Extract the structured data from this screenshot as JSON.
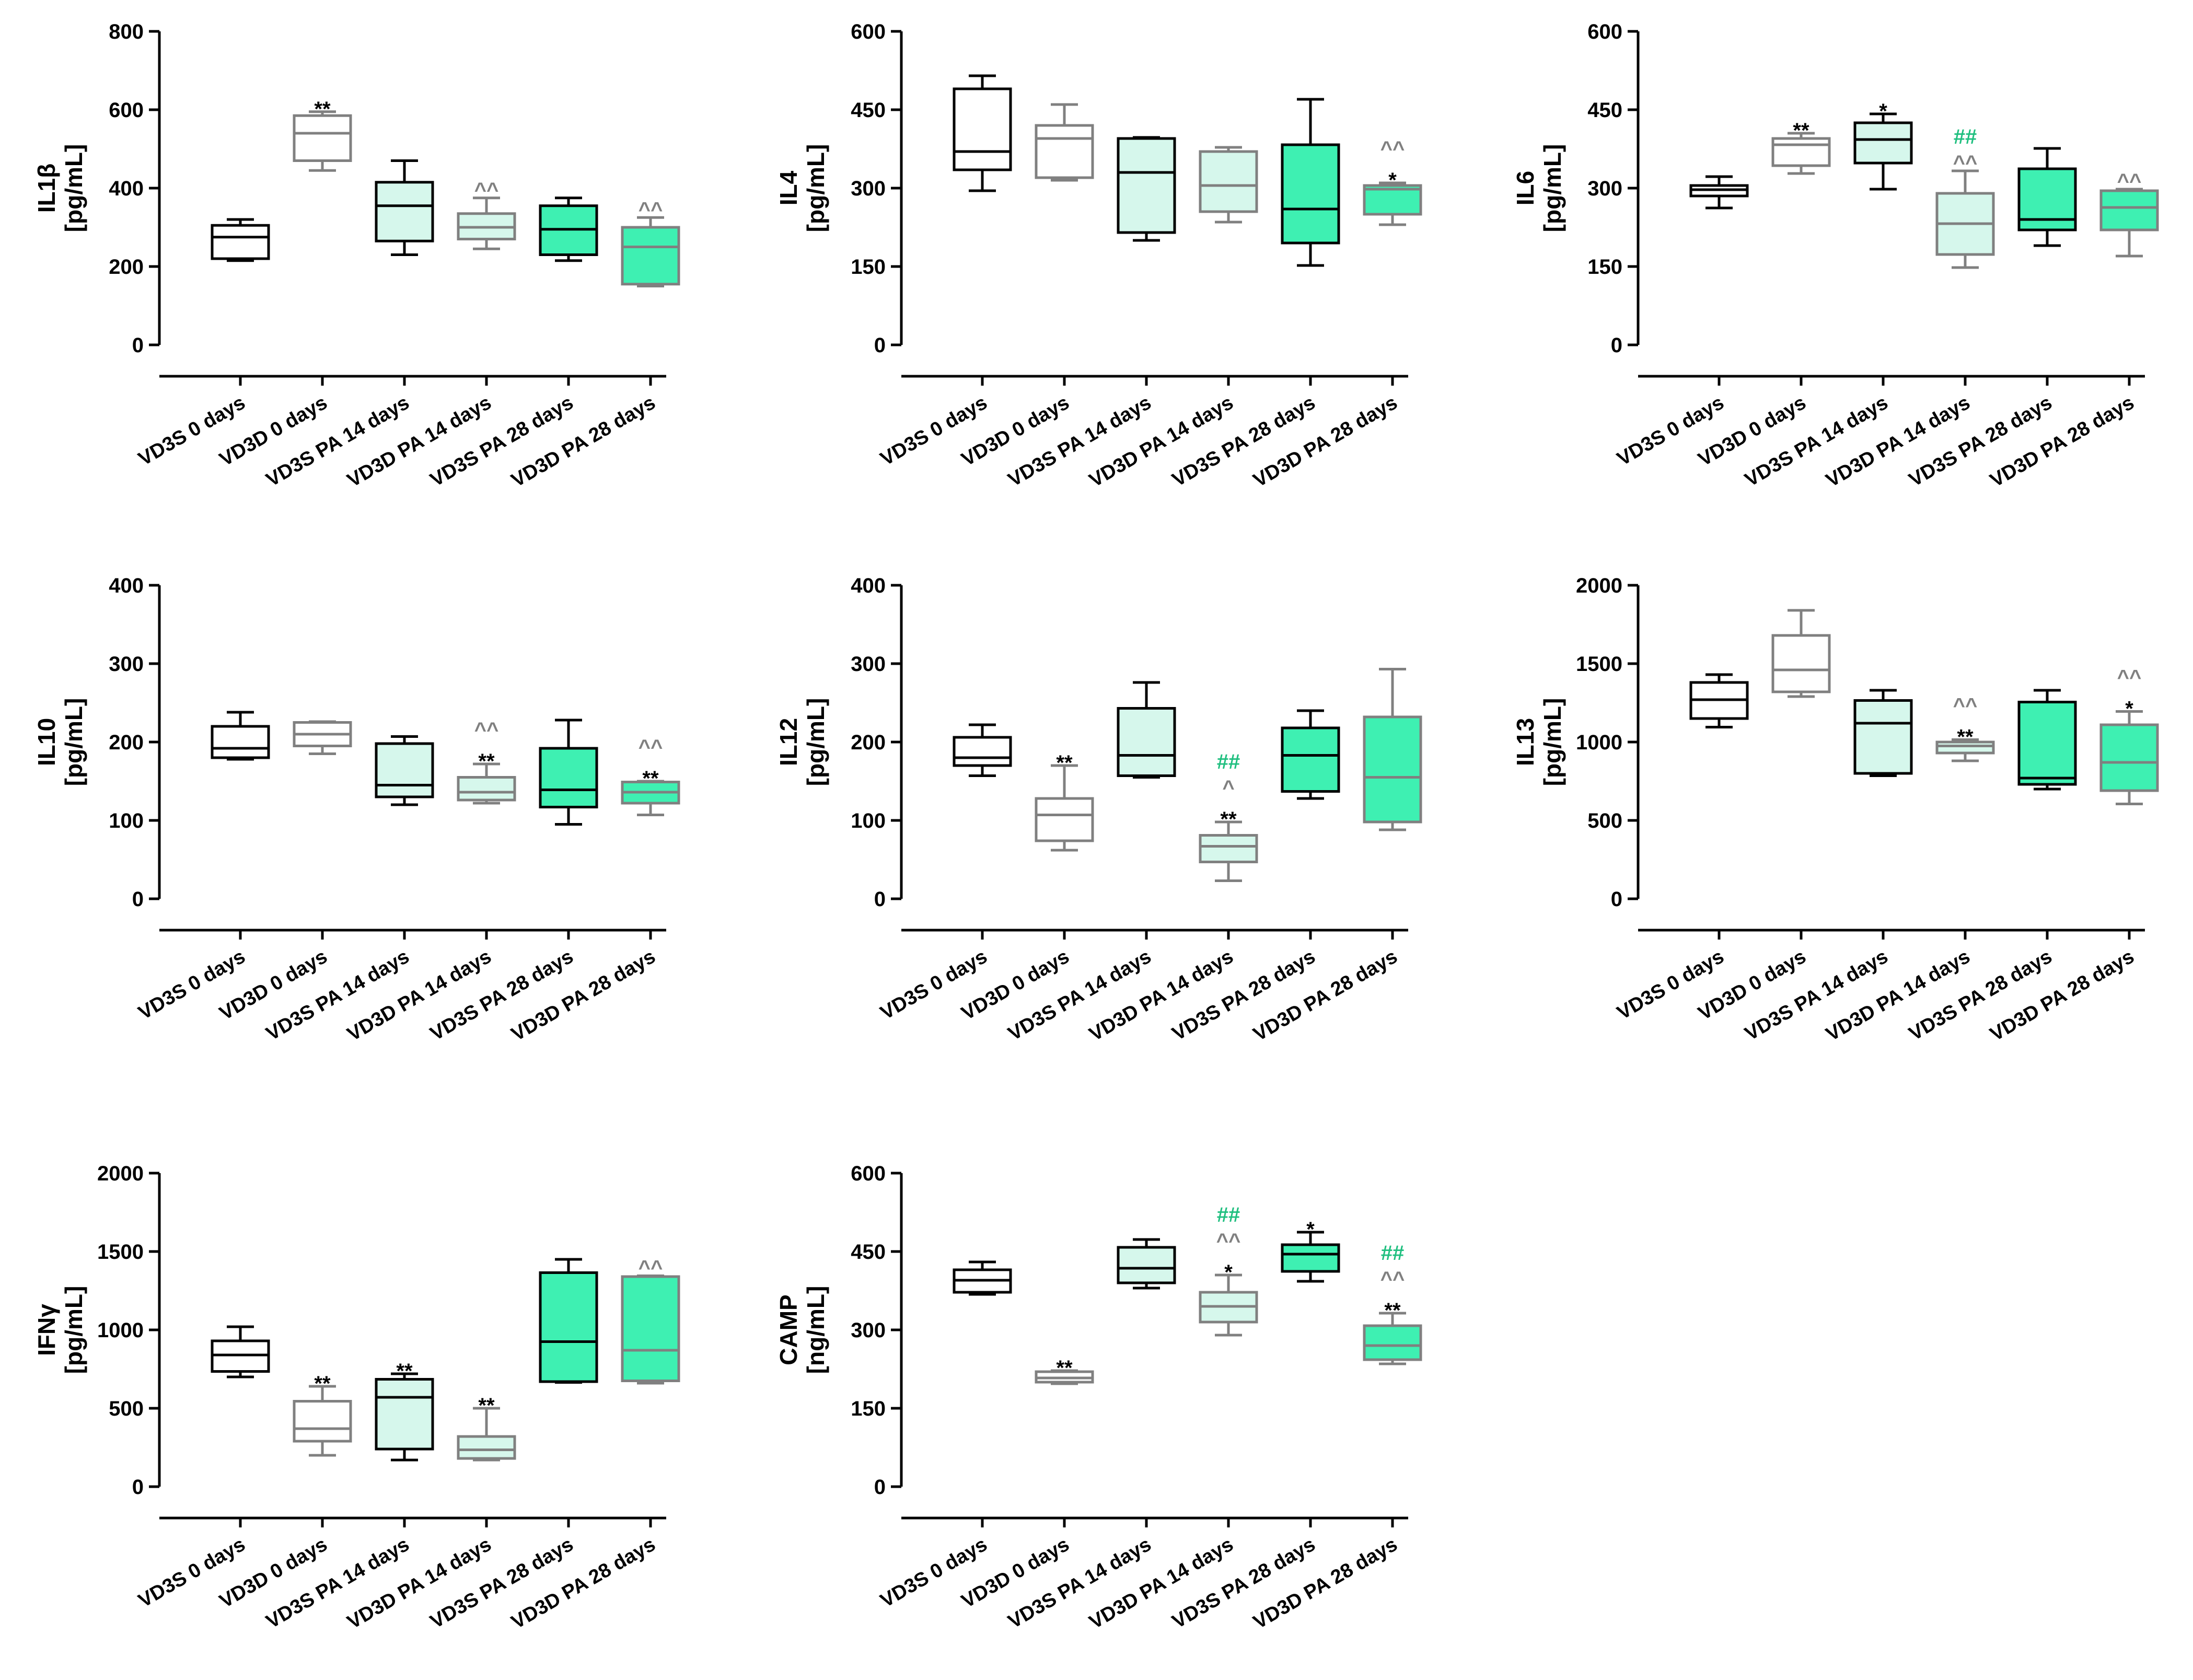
{
  "colors": {
    "axis": "#000000",
    "s0d": "#000000",
    "d0d": "#808080",
    "s14": "#000000",
    "d14": "#808080",
    "s28": "#000000",
    "d28": "#808080",
    "fill_light": "#d6f7ec",
    "fill_bright": "#3ef0b2",
    "anno_star": "#000000",
    "anno_caret": "#808080",
    "anno_hash": "#1fbf7f"
  },
  "chart_data": [
    {
      "type": "box",
      "id": "il1b",
      "ylabel_line1": "IL1β",
      "ylabel_line2": "[pg/mL]",
      "ylim": [
        0,
        800
      ],
      "yticks": [
        "0",
        "200",
        "400",
        "600",
        "800"
      ],
      "categories": [
        "VD3S 0 days",
        "VD3D 0 days",
        "VD3S PA 14 days",
        "VD3D PA 14 days",
        "VD3S PA 28 days",
        "VD3D PA 28 days"
      ],
      "boxes": [
        {
          "min": 215,
          "q1": 220,
          "median": 275,
          "q3": 305,
          "max": 320
        },
        {
          "min": 445,
          "q1": 470,
          "median": 540,
          "q3": 585,
          "max": 595
        },
        {
          "min": 230,
          "q1": 265,
          "median": 355,
          "q3": 415,
          "max": 470
        },
        {
          "min": 245,
          "q1": 270,
          "median": 300,
          "q3": 335,
          "max": 375
        },
        {
          "min": 215,
          "q1": 230,
          "median": 295,
          "q3": 355,
          "max": 375
        },
        {
          "min": 150,
          "q1": 155,
          "median": 250,
          "q3": 300,
          "max": 325
        }
      ],
      "annotations": [
        {
          "cat": 1,
          "lines": [
            {
              "text": "**",
              "kind": "star"
            }
          ]
        },
        {
          "cat": 3,
          "lines": [
            {
              "text": "^^",
              "kind": "caret"
            }
          ]
        },
        {
          "cat": 5,
          "lines": [
            {
              "text": "^^",
              "kind": "caret"
            }
          ]
        }
      ]
    },
    {
      "type": "box",
      "id": "il4",
      "ylabel_line1": "IL4",
      "ylabel_line2": "[pg/mL]",
      "ylim": [
        0,
        600
      ],
      "yticks": [
        "0",
        "150",
        "300",
        "450",
        "600"
      ],
      "categories": [
        "VD3S 0 days",
        "VD3D 0 days",
        "VD3S PA 14 days",
        "VD3D PA 14 days",
        "VD3S PA 28 days",
        "VD3D PA 28 days"
      ],
      "boxes": [
        {
          "min": 295,
          "q1": 335,
          "median": 370,
          "q3": 490,
          "max": 515
        },
        {
          "min": 315,
          "q1": 320,
          "median": 395,
          "q3": 420,
          "max": 460
        },
        {
          "min": 200,
          "q1": 215,
          "median": 330,
          "q3": 395,
          "max": 397
        },
        {
          "min": 235,
          "q1": 255,
          "median": 305,
          "q3": 370,
          "max": 378
        },
        {
          "min": 152,
          "q1": 195,
          "median": 260,
          "q3": 383,
          "max": 470
        },
        {
          "min": 230,
          "q1": 250,
          "median": 298,
          "q3": 305,
          "max": 310
        }
      ],
      "annotations": [
        {
          "cat": 5,
          "lines": [
            {
              "text": "*",
              "kind": "star"
            },
            {
              "text": "^^",
              "kind": "caret"
            }
          ]
        }
      ]
    },
    {
      "type": "box",
      "id": "il6",
      "ylabel_line1": "IL6",
      "ylabel_line2": "[pg/mL]",
      "ylim": [
        0,
        600
      ],
      "yticks": [
        "0",
        "150",
        "300",
        "450",
        "600"
      ],
      "categories": [
        "VD3S 0 days",
        "VD3D 0 days",
        "VD3S PA 14 days",
        "VD3D PA 14 days",
        "VD3S PA 28 days",
        "VD3D PA 28 days"
      ],
      "boxes": [
        {
          "min": 262,
          "q1": 285,
          "median": 297,
          "q3": 305,
          "max": 322
        },
        {
          "min": 328,
          "q1": 343,
          "median": 383,
          "q3": 395,
          "max": 405
        },
        {
          "min": 298,
          "q1": 348,
          "median": 393,
          "q3": 425,
          "max": 442
        },
        {
          "min": 148,
          "q1": 173,
          "median": 232,
          "q3": 290,
          "max": 333
        },
        {
          "min": 190,
          "q1": 220,
          "median": 240,
          "q3": 337,
          "max": 376
        },
        {
          "min": 170,
          "q1": 220,
          "median": 263,
          "q3": 295,
          "max": 298
        }
      ],
      "annotations": [
        {
          "cat": 1,
          "lines": [
            {
              "text": "**",
              "kind": "star"
            }
          ]
        },
        {
          "cat": 2,
          "lines": [
            {
              "text": "*",
              "kind": "star"
            }
          ]
        },
        {
          "cat": 3,
          "lines": [
            {
              "text": "^^",
              "kind": "caret"
            },
            {
              "text": "##",
              "kind": "hash"
            }
          ]
        },
        {
          "cat": 5,
          "lines": [
            {
              "text": "^^",
              "kind": "caret"
            }
          ]
        }
      ]
    },
    {
      "type": "box",
      "id": "il10",
      "ylabel_line1": "IL10",
      "ylabel_line2": "[pg/mL]",
      "ylim": [
        0,
        400
      ],
      "yticks": [
        "0",
        "100",
        "200",
        "300",
        "400"
      ],
      "categories": [
        "VD3S 0 days",
        "VD3D 0 days",
        "VD3S PA 14 days",
        "VD3D PA 14 days",
        "VD3S PA 28 days",
        "VD3D PA 28 days"
      ],
      "boxes": [
        {
          "min": 178,
          "q1": 180,
          "median": 192,
          "q3": 220,
          "max": 238
        },
        {
          "min": 185,
          "q1": 195,
          "median": 210,
          "q3": 225,
          "max": 226
        },
        {
          "min": 120,
          "q1": 130,
          "median": 145,
          "q3": 198,
          "max": 207
        },
        {
          "min": 122,
          "q1": 126,
          "median": 136,
          "q3": 155,
          "max": 172
        },
        {
          "min": 95,
          "q1": 117,
          "median": 139,
          "q3": 192,
          "max": 228
        },
        {
          "min": 107,
          "q1": 122,
          "median": 136,
          "q3": 149,
          "max": 150
        }
      ],
      "annotations": [
        {
          "cat": 3,
          "lines": [
            {
              "text": "**",
              "kind": "star"
            },
            {
              "text": "^^",
              "kind": "caret"
            }
          ]
        },
        {
          "cat": 5,
          "lines": [
            {
              "text": "**",
              "kind": "star"
            },
            {
              "text": "^^",
              "kind": "caret"
            }
          ]
        }
      ]
    },
    {
      "type": "box",
      "id": "il12",
      "ylabel_line1": "IL12",
      "ylabel_line2": "[pg/mL]",
      "ylim": [
        0,
        400
      ],
      "yticks": [
        "0",
        "100",
        "200",
        "300",
        "400"
      ],
      "categories": [
        "VD3S 0 days",
        "VD3D 0 days",
        "VD3S PA 14 days",
        "VD3D PA 14 days",
        "VD3S PA 28 days",
        "VD3D PA 28 days"
      ],
      "boxes": [
        {
          "min": 157,
          "q1": 170,
          "median": 180,
          "q3": 206,
          "max": 222
        },
        {
          "min": 62,
          "q1": 74,
          "median": 107,
          "q3": 128,
          "max": 170
        },
        {
          "min": 155,
          "q1": 157,
          "median": 183,
          "q3": 243,
          "max": 276
        },
        {
          "min": 23,
          "q1": 47,
          "median": 67,
          "q3": 81,
          "max": 98
        },
        {
          "min": 128,
          "q1": 137,
          "median": 183,
          "q3": 218,
          "max": 240
        },
        {
          "min": 88,
          "q1": 98,
          "median": 155,
          "q3": 232,
          "max": 293
        }
      ],
      "annotations": [
        {
          "cat": 1,
          "lines": [
            {
              "text": "**",
              "kind": "star"
            }
          ]
        },
        {
          "cat": 3,
          "lines": [
            {
              "text": "**",
              "kind": "star"
            },
            {
              "text": "^",
              "kind": "caret"
            },
            {
              "text": "##",
              "kind": "hash"
            }
          ]
        }
      ]
    },
    {
      "type": "box",
      "id": "il13",
      "ylabel_line1": "IL13",
      "ylabel_line2": "[pg/mL]",
      "ylim": [
        0,
        2000
      ],
      "yticks": [
        "0",
        "500",
        "1000",
        "1500",
        "2000"
      ],
      "categories": [
        "VD3S 0 days",
        "VD3D 0 days",
        "VD3S PA 14 days",
        "VD3D PA 14 days",
        "VD3S PA 28 days",
        "VD3D PA 28 days"
      ],
      "boxes": [
        {
          "min": 1095,
          "q1": 1150,
          "median": 1270,
          "q3": 1380,
          "max": 1430
        },
        {
          "min": 1290,
          "q1": 1320,
          "median": 1460,
          "q3": 1680,
          "max": 1840
        },
        {
          "min": 785,
          "q1": 800,
          "median": 1120,
          "q3": 1265,
          "max": 1330
        },
        {
          "min": 880,
          "q1": 930,
          "median": 975,
          "q3": 1000,
          "max": 1015
        },
        {
          "min": 700,
          "q1": 730,
          "median": 770,
          "q3": 1255,
          "max": 1330
        },
        {
          "min": 605,
          "q1": 690,
          "median": 870,
          "q3": 1110,
          "max": 1195
        }
      ],
      "annotations": [
        {
          "cat": 3,
          "lines": [
            {
              "text": "**",
              "kind": "star"
            },
            {
              "text": "^^",
              "kind": "caret"
            }
          ]
        },
        {
          "cat": 5,
          "lines": [
            {
              "text": "*",
              "kind": "star"
            },
            {
              "text": "^^",
              "kind": "caret"
            }
          ]
        }
      ]
    },
    {
      "type": "box",
      "id": "ifng",
      "ylabel_line1": "IFNγ",
      "ylabel_line2": "[pg/mL]",
      "ylim": [
        0,
        2000
      ],
      "yticks": [
        "0",
        "500",
        "1000",
        "1500",
        "2000"
      ],
      "categories": [
        "VD3S 0 days",
        "VD3D 0 days",
        "VD3S PA 14 days",
        "VD3D PA 14 days",
        "VD3S PA 28 days",
        "VD3D PA 28 days"
      ],
      "boxes": [
        {
          "min": 700,
          "q1": 735,
          "median": 840,
          "q3": 930,
          "max": 1020
        },
        {
          "min": 200,
          "q1": 290,
          "median": 370,
          "q3": 545,
          "max": 640
        },
        {
          "min": 170,
          "q1": 240,
          "median": 570,
          "q3": 685,
          "max": 720
        },
        {
          "min": 170,
          "q1": 180,
          "median": 235,
          "q3": 320,
          "max": 500
        },
        {
          "min": 665,
          "q1": 670,
          "median": 925,
          "q3": 1365,
          "max": 1450
        },
        {
          "min": 660,
          "q1": 675,
          "median": 870,
          "q3": 1340,
          "max": 1345
        }
      ],
      "annotations": [
        {
          "cat": 1,
          "lines": [
            {
              "text": "**",
              "kind": "star"
            }
          ]
        },
        {
          "cat": 2,
          "lines": [
            {
              "text": "**",
              "kind": "star"
            }
          ]
        },
        {
          "cat": 3,
          "lines": [
            {
              "text": "**",
              "kind": "star"
            }
          ]
        },
        {
          "cat": 5,
          "lines": [
            {
              "text": "^^",
              "kind": "caret"
            }
          ]
        }
      ]
    },
    {
      "type": "box",
      "id": "camp",
      "ylabel_line1": "CAMP",
      "ylabel_line2": "[ng/mL]",
      "ylim": [
        0,
        600
      ],
      "yticks": [
        "0",
        "150",
        "300",
        "450",
        "600"
      ],
      "categories": [
        "VD3S 0 days",
        "VD3D 0 days",
        "VD3S PA 14 days",
        "VD3D PA 14 days",
        "VD3S PA 28 days",
        "VD3D PA 28 days"
      ],
      "boxes": [
        {
          "min": 368,
          "q1": 372,
          "median": 395,
          "q3": 415,
          "max": 430
        },
        {
          "min": 197,
          "q1": 200,
          "median": 208,
          "q3": 220,
          "max": 222
        },
        {
          "min": 380,
          "q1": 390,
          "median": 418,
          "q3": 458,
          "max": 473
        },
        {
          "min": 290,
          "q1": 315,
          "median": 345,
          "q3": 372,
          "max": 405
        },
        {
          "min": 393,
          "q1": 412,
          "median": 445,
          "q3": 463,
          "max": 487
        },
        {
          "min": 235,
          "q1": 243,
          "median": 270,
          "q3": 308,
          "max": 332
        }
      ],
      "annotations": [
        {
          "cat": 1,
          "lines": [
            {
              "text": "**",
              "kind": "star"
            }
          ]
        },
        {
          "cat": 3,
          "lines": [
            {
              "text": "*",
              "kind": "star"
            },
            {
              "text": "^^",
              "kind": "caret"
            },
            {
              "text": "##",
              "kind": "hash"
            }
          ]
        },
        {
          "cat": 4,
          "lines": [
            {
              "text": "*",
              "kind": "star"
            }
          ]
        },
        {
          "cat": 5,
          "lines": [
            {
              "text": "**",
              "kind": "star"
            },
            {
              "text": "^^",
              "kind": "caret"
            },
            {
              "text": "##",
              "kind": "hash"
            }
          ]
        }
      ]
    }
  ]
}
